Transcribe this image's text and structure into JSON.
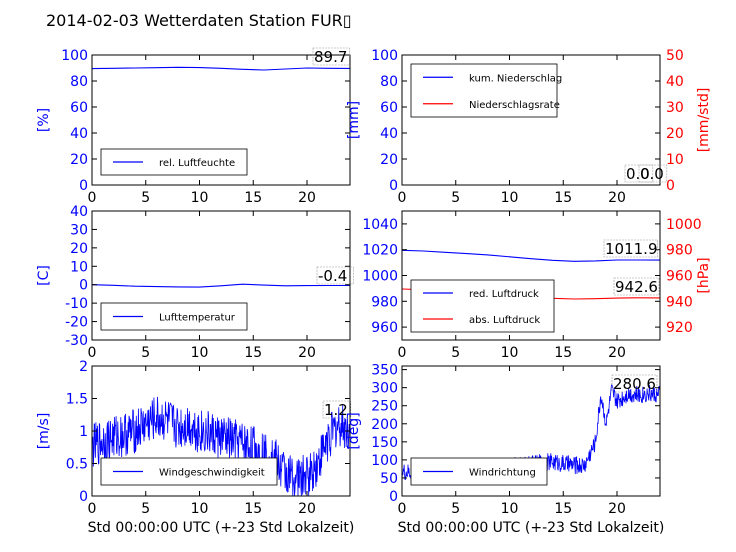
{
  "title": "2014-02-03 Wetterdaten Station FUR▯",
  "colors": {
    "primary": "#0000ff",
    "secondary": "#ff0000",
    "axis": "#000000"
  },
  "chart_data": [
    {
      "id": "humidity",
      "type": "line",
      "xlim": [
        0,
        24
      ],
      "xticks": [
        0,
        5,
        10,
        15,
        20
      ],
      "ylim": [
        0,
        100
      ],
      "yticks": [
        0,
        20,
        40,
        60,
        80,
        100
      ],
      "ylabel": "[%]",
      "xlabel": "",
      "last_value_label": "89.7",
      "legend_placement": "lower-left",
      "series": [
        {
          "name": "rel. Luftfeuchte",
          "axis": "left",
          "color": "#0000ff",
          "x": [
            0,
            2,
            4,
            6,
            8,
            10,
            12,
            14,
            16,
            18,
            20,
            22,
            24
          ],
          "y": [
            89.5,
            89.8,
            90.0,
            90.2,
            90.5,
            90.3,
            89.8,
            89.0,
            88.5,
            89.2,
            90.0,
            89.8,
            89.7
          ]
        }
      ]
    },
    {
      "id": "precip",
      "type": "line",
      "xlim": [
        0,
        24
      ],
      "xticks": [
        0,
        5,
        10,
        15,
        20
      ],
      "ylim": [
        0,
        100
      ],
      "yticks": [
        0,
        20,
        40,
        60,
        80,
        100
      ],
      "ylabel": "[mm]",
      "y2lim": [
        0,
        50
      ],
      "y2ticks": [
        0,
        10,
        20,
        30,
        40,
        50
      ],
      "y2label": "[mm/std]",
      "xlabel": "",
      "value_labels": [
        "0.0",
        "0.0"
      ],
      "legend_placement": "upper-left",
      "series": [
        {
          "name": "kum. Niederschlag",
          "axis": "left",
          "color": "#0000ff",
          "x": [
            0,
            24
          ],
          "y": [
            0,
            0
          ]
        },
        {
          "name": "Niederschlagsrate",
          "axis": "right",
          "color": "#ff0000",
          "x": [
            0,
            24
          ],
          "y": [
            0,
            0
          ]
        }
      ]
    },
    {
      "id": "temperature",
      "type": "line",
      "xlim": [
        0,
        24
      ],
      "xticks": [
        0,
        5,
        10,
        15,
        20
      ],
      "ylim": [
        -30,
        40
      ],
      "yticks": [
        -30,
        -20,
        -10,
        0,
        10,
        20,
        30,
        40
      ],
      "ylabel": "[C]",
      "xlabel": "",
      "last_value_label": "-0.4",
      "legend_placement": "lower-left",
      "series": [
        {
          "name": "Lufttemperatur",
          "axis": "left",
          "color": "#0000ff",
          "x": [
            0,
            2,
            4,
            6,
            8,
            10,
            12,
            14,
            16,
            18,
            20,
            22,
            24
          ],
          "y": [
            0.0,
            -0.3,
            -0.8,
            -1.0,
            -1.2,
            -1.3,
            -0.6,
            0.3,
            -0.2,
            -0.6,
            -0.5,
            -0.4,
            -0.4
          ]
        }
      ]
    },
    {
      "id": "pressure",
      "type": "line",
      "xlim": [
        0,
        24
      ],
      "xticks": [
        0,
        5,
        10,
        15,
        20
      ],
      "ylim": [
        950,
        1050
      ],
      "yticks": [
        960,
        980,
        1000,
        1020,
        1040
      ],
      "ylabel": "",
      "y2lim": [
        910,
        1010
      ],
      "y2ticks": [
        920,
        940,
        960,
        980,
        1000
      ],
      "y2label": "[hPa]",
      "xlabel": "",
      "value_labels": [
        "1011.9",
        "942.6"
      ],
      "legend_placement": "lower-left",
      "series": [
        {
          "name": "red. Luftdruck",
          "axis": "left",
          "color": "#0000ff",
          "x": [
            0,
            2,
            4,
            6,
            8,
            10,
            12,
            14,
            16,
            18,
            20,
            22,
            24
          ],
          "y": [
            1019.5,
            1019.0,
            1018.0,
            1017.0,
            1016.0,
            1014.5,
            1013.0,
            1011.8,
            1011.0,
            1011.3,
            1012.0,
            1012.0,
            1011.9
          ]
        },
        {
          "name": "abs. Luftdruck",
          "axis": "right",
          "color": "#ff0000",
          "x": [
            0,
            2,
            4,
            6,
            8,
            10,
            12,
            14,
            16,
            18,
            20,
            22,
            24
          ],
          "y": [
            949.5,
            949.0,
            948.0,
            947.0,
            946.0,
            944.5,
            943.5,
            942.3,
            941.8,
            942.0,
            942.5,
            942.7,
            942.6
          ]
        }
      ]
    },
    {
      "id": "windspeed",
      "type": "line",
      "xlim": [
        0,
        24
      ],
      "xticks": [
        0,
        5,
        10,
        15,
        20
      ],
      "ylim": [
        0,
        2
      ],
      "yticks": [
        0.0,
        0.5,
        1.0,
        1.5,
        2.0
      ],
      "ylabel": "[m/s]",
      "xlabel": "Std 00:00:00 UTC (+-23 Std Lokalzeit)",
      "last_value_label": "1.2",
      "legend_placement": "lower-left",
      "series": [
        {
          "name": "Windgeschwindigkeit",
          "axis": "left",
          "color": "#0000ff",
          "x": [
            0,
            1,
            2,
            3,
            4,
            5,
            6,
            7,
            8,
            9,
            10,
            11,
            12,
            13,
            14,
            15,
            16,
            17,
            18,
            19,
            20,
            21,
            22,
            23,
            24
          ],
          "y": [
            0.75,
            0.85,
            0.9,
            0.95,
            1.0,
            1.1,
            1.2,
            1.15,
            1.05,
            1.1,
            1.0,
            0.95,
            0.9,
            0.85,
            0.8,
            0.75,
            0.65,
            0.55,
            0.35,
            0.25,
            0.3,
            0.5,
            0.9,
            1.1,
            1.0
          ],
          "noise": 0.35
        }
      ]
    },
    {
      "id": "winddir",
      "type": "line",
      "xlim": [
        0,
        24
      ],
      "xticks": [
        0,
        5,
        10,
        15,
        20
      ],
      "ylim": [
        0,
        360
      ],
      "yticks": [
        0,
        50,
        100,
        150,
        200,
        250,
        300,
        350
      ],
      "ylabel": "[deg]",
      "xlabel": "Std 00:00:00 UTC (+-23 Std Lokalzeit)",
      "last_value_label": "280.6",
      "legend_placement": "lower-left",
      "series": [
        {
          "name": "Windrichtung",
          "axis": "left",
          "color": "#0000ff",
          "x": [
            0,
            1,
            2,
            3,
            4,
            5,
            6,
            7,
            8,
            9,
            10,
            11,
            12,
            13,
            14,
            15,
            16,
            17,
            18,
            18.5,
            19,
            19.5,
            20,
            21,
            22,
            23,
            24
          ],
          "y": [
            65,
            62,
            60,
            62,
            64,
            68,
            72,
            74,
            78,
            80,
            82,
            85,
            88,
            92,
            95,
            90,
            85,
            85,
            150,
            280,
            200,
            290,
            260,
            285,
            280,
            285,
            280
          ],
          "noise": 25
        }
      ]
    }
  ]
}
